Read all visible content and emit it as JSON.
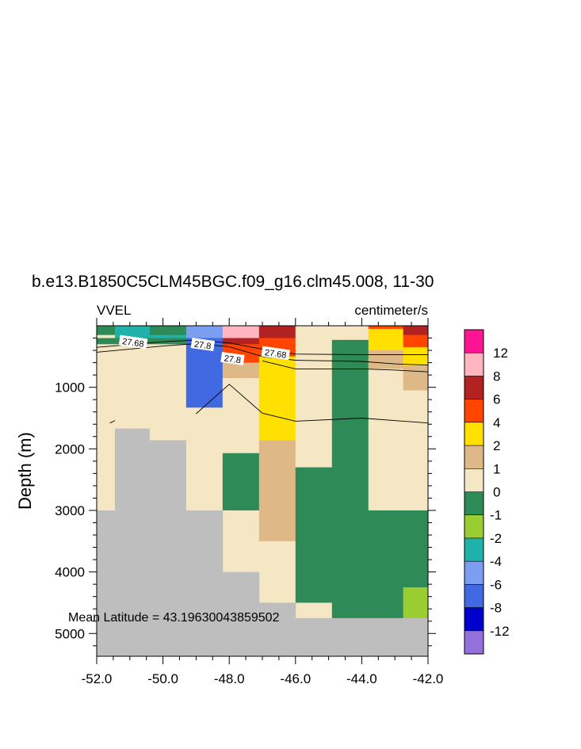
{
  "chart_data": {
    "type": "heatmap",
    "title": "b.e13.B1850C5CLM45BGC.f09_g16.clm45.008, 11-30",
    "left_label": "VVEL",
    "right_label": "centimeter/s",
    "ylabel": "Depth (m)",
    "annotation": "Mean Latitude = 43.19630043859502",
    "xlim": [
      -52.0,
      -42.0
    ],
    "ylim": [
      5370,
      0
    ],
    "x_ticks": [
      "-52.0",
      "-50.0",
      "-48.0",
      "-46.0",
      "-44.0",
      "-42.0"
    ],
    "y_ticks": [
      "1000",
      "2000",
      "3000",
      "4000",
      "5000"
    ],
    "colorbar": {
      "labels": [
        "12",
        "8",
        "6",
        "4",
        "2",
        "1",
        "0",
        "-1",
        "-2",
        "-4",
        "-6",
        "-8",
        "-12"
      ],
      "colors": [
        "#ff1493",
        "#ffb6c1",
        "#b22222",
        "#ff4500",
        "#ffe000",
        "#deb887",
        "#f5e6c4",
        "#2e8b57",
        "#9acd32",
        "#20b2aa",
        "#7b9ef0",
        "#4169e1",
        "#0000cd",
        "#9370db"
      ]
    },
    "land_color": "#bebebe",
    "cells": [
      {
        "x0": -52.0,
        "x1": -51.45,
        "y0": 0,
        "y1": 150,
        "v": "-1"
      },
      {
        "x0": -51.45,
        "x1": -50.4,
        "y0": 0,
        "y1": 150,
        "v": "-2"
      },
      {
        "x0": -50.4,
        "x1": -49.3,
        "y0": 0,
        "y1": 150,
        "v": "-1"
      },
      {
        "x0": -52.0,
        "x1": -51.45,
        "y0": 150,
        "y1": 200,
        "v": "0"
      },
      {
        "x0": -51.45,
        "x1": -49.3,
        "y0": 150,
        "y1": 200,
        "v": "-2"
      },
      {
        "x0": -52.0,
        "x1": -49.3,
        "y0": 200,
        "y1": 300,
        "v": "-1"
      },
      {
        "x0": -52.0,
        "x1": -49.3,
        "y0": 300,
        "y1": 1670,
        "v": "0"
      },
      {
        "x0": -52.0,
        "x1": -51.45,
        "y0": 1670,
        "y1": 3000,
        "v": "0"
      },
      {
        "x0": -51.45,
        "x1": -50.4,
        "y0": 1670,
        "y1": 1860,
        "v": "land"
      },
      {
        "x0": -50.4,
        "x1": -49.3,
        "y0": 1670,
        "y1": 1860,
        "v": "0"
      },
      {
        "x0": -51.45,
        "x1": -49.3,
        "y0": 1860,
        "y1": 3000,
        "v": "land"
      },
      {
        "x0": -49.3,
        "x1": -48.2,
        "y0": 0,
        "y1": 200,
        "v": "-4"
      },
      {
        "x0": -49.3,
        "x1": -48.2,
        "y0": 200,
        "y1": 1330,
        "v": "-6"
      },
      {
        "x0": -49.3,
        "x1": -48.2,
        "y0": 1330,
        "y1": 3000,
        "v": "0"
      },
      {
        "x0": -48.2,
        "x1": -47.1,
        "y0": 0,
        "y1": 200,
        "v": "8"
      },
      {
        "x0": -48.2,
        "x1": -47.1,
        "y0": 200,
        "y1": 300,
        "v": "6"
      },
      {
        "x0": -48.2,
        "x1": -47.1,
        "y0": 300,
        "y1": 600,
        "v": "4"
      },
      {
        "x0": -48.2,
        "x1": -47.1,
        "y0": 600,
        "y1": 850,
        "v": "1"
      },
      {
        "x0": -48.2,
        "x1": -47.1,
        "y0": 850,
        "y1": 2070,
        "v": "0"
      },
      {
        "x0": -48.2,
        "x1": -47.1,
        "y0": 2070,
        "y1": 3000,
        "v": "-1"
      },
      {
        "x0": -48.2,
        "x1": -47.1,
        "y0": 3000,
        "y1": 4000,
        "v": "0"
      },
      {
        "x0": -47.1,
        "x1": -46.0,
        "y0": 0,
        "y1": 200,
        "v": "6"
      },
      {
        "x0": -47.1,
        "x1": -46.0,
        "y0": 200,
        "y1": 500,
        "v": "4"
      },
      {
        "x0": -47.1,
        "x1": -46.0,
        "y0": 500,
        "y1": 1860,
        "v": "2"
      },
      {
        "x0": -47.1,
        "x1": -46.0,
        "y0": 1860,
        "y1": 3500,
        "v": "1"
      },
      {
        "x0": -47.1,
        "x1": -46.0,
        "y0": 3500,
        "y1": 4500,
        "v": "0"
      },
      {
        "x0": -46.0,
        "x1": -44.9,
        "y0": 0,
        "y1": 2300,
        "v": "0"
      },
      {
        "x0": -46.0,
        "x1": -44.9,
        "y0": 2300,
        "y1": 4500,
        "v": "-1"
      },
      {
        "x0": -46.0,
        "x1": -44.9,
        "y0": 4500,
        "y1": 4750,
        "v": "0"
      },
      {
        "x0": -44.9,
        "x1": -43.8,
        "y0": 0,
        "y1": 230,
        "v": "0"
      },
      {
        "x0": -44.9,
        "x1": -43.8,
        "y0": 230,
        "y1": 4750,
        "v": "-1"
      },
      {
        "x0": -43.8,
        "x1": -42.75,
        "y0": 0,
        "y1": 50,
        "v": "4"
      },
      {
        "x0": -43.8,
        "x1": -42.75,
        "y0": 50,
        "y1": 100,
        "v": "2"
      },
      {
        "x0": -43.8,
        "x1": -42.75,
        "y0": 100,
        "y1": 400,
        "v": "2"
      },
      {
        "x0": -43.8,
        "x1": -42.75,
        "y0": 400,
        "y1": 700,
        "v": "1"
      },
      {
        "x0": -43.8,
        "x1": -42.75,
        "y0": 700,
        "y1": 3000,
        "v": "0"
      },
      {
        "x0": -43.8,
        "x1": -42.75,
        "y0": 3000,
        "y1": 4750,
        "v": "-1"
      },
      {
        "x0": -42.75,
        "x1": -42.0,
        "y0": 0,
        "y1": 150,
        "v": "6"
      },
      {
        "x0": -42.75,
        "x1": -42.0,
        "y0": 150,
        "y1": 350,
        "v": "4"
      },
      {
        "x0": -42.75,
        "x1": -42.0,
        "y0": 350,
        "y1": 650,
        "v": "2"
      },
      {
        "x0": -42.75,
        "x1": -42.0,
        "y0": 650,
        "y1": 1050,
        "v": "1"
      },
      {
        "x0": -42.75,
        "x1": -42.0,
        "y0": 1050,
        "y1": 3000,
        "v": "0"
      },
      {
        "x0": -42.75,
        "x1": -42.0,
        "y0": 3000,
        "y1": 4250,
        "v": "-1"
      },
      {
        "x0": -42.75,
        "x1": -42.0,
        "y0": 4250,
        "y1": 4750,
        "v": "-1b"
      },
      {
        "x0": -52.0,
        "x1": -49.3,
        "y0": 3000,
        "y1": 5370,
        "v": "land"
      },
      {
        "x0": -49.3,
        "x1": -48.2,
        "y0": 3000,
        "y1": 5370,
        "v": "land"
      },
      {
        "x0": -48.2,
        "x1": -47.1,
        "y0": 4000,
        "y1": 5370,
        "v": "land"
      },
      {
        "x0": -47.1,
        "x1": -46.0,
        "y0": 4500,
        "y1": 5370,
        "v": "land"
      },
      {
        "x0": -46.0,
        "x1": -44.9,
        "y0": 4750,
        "y1": 5370,
        "v": "land"
      },
      {
        "x0": -44.9,
        "x1": -42.0,
        "y0": 4750,
        "y1": 5370,
        "v": "land"
      }
    ],
    "contours": [
      {
        "label": "27.68",
        "points": [
          [
            -52.0,
            350
          ],
          [
            -50.0,
            260
          ],
          [
            -49.0,
            230
          ],
          [
            -48.0,
            280
          ],
          [
            -47.0,
            380
          ],
          [
            -46.0,
            460
          ],
          [
            -44.0,
            470
          ],
          [
            -42.0,
            470
          ]
        ]
      },
      {
        "label": "27.8",
        "points": [
          [
            -52.0,
            430
          ],
          [
            -50.0,
            330
          ],
          [
            -49.0,
            290
          ],
          [
            -48.0,
            340
          ],
          [
            -47.0,
            500
          ],
          [
            -46.0,
            560
          ],
          [
            -44.0,
            580
          ],
          [
            -43.0,
            620
          ],
          [
            -42.0,
            640
          ]
        ]
      },
      {
        "label": "",
        "points": [
          [
            -47.0,
            570
          ],
          [
            -46.0,
            700
          ],
          [
            -44.0,
            700
          ],
          [
            -43.0,
            720
          ],
          [
            -42.0,
            750
          ]
        ]
      },
      {
        "label": "",
        "points": [
          [
            -49.0,
            1430
          ],
          [
            -48.0,
            950
          ],
          [
            -47.0,
            1420
          ],
          [
            -46.0,
            1550
          ],
          [
            -44.0,
            1500
          ],
          [
            -42.0,
            1580
          ]
        ]
      },
      {
        "label": "",
        "points": [
          [
            -51.6,
            1580
          ],
          [
            -51.45,
            1540
          ]
        ]
      }
    ],
    "contour_labels": [
      {
        "text": "27.68",
        "x": -50.9,
        "y": 270
      },
      {
        "text": "27.8",
        "x": -48.8,
        "y": 310
      },
      {
        "text": "27.8",
        "x": -47.9,
        "y": 540
      },
      {
        "text": "27.68",
        "x": -46.6,
        "y": 450
      }
    ]
  }
}
